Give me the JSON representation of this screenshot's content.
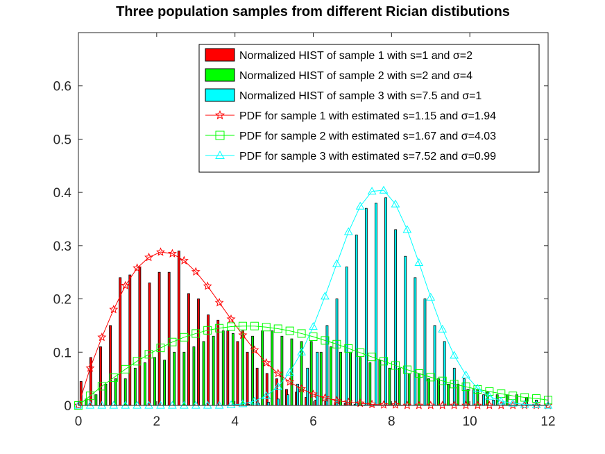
{
  "chart_data": {
    "type": "bar",
    "title": "Three population samples from different Rician distibutions",
    "xlabel": "",
    "ylabel": "",
    "xlim": [
      0,
      12
    ],
    "ylim": [
      0,
      0.7
    ],
    "x_ticks": [
      "0",
      "2",
      "4",
      "6",
      "8",
      "10",
      "12"
    ],
    "y_ticks": [
      "0",
      "0.1",
      "0.2",
      "0.3",
      "0.4",
      "0.5",
      "0.6"
    ],
    "grid": false,
    "legend_position": "top-right",
    "histograms": [
      {
        "name": "Normalized HIST of sample 1 with s=1 and σ=2",
        "color": "#ff0000",
        "x": [
          0.12,
          0.37,
          0.62,
          0.87,
          1.12,
          1.37,
          1.62,
          1.87,
          2.12,
          2.37,
          2.62,
          2.87,
          3.12,
          3.37,
          3.62,
          3.87,
          4.12,
          4.37,
          4.62,
          4.87,
          5.12,
          5.37,
          5.62,
          5.87,
          6.12,
          6.37,
          6.62,
          6.87,
          7.12,
          7.37
        ],
        "values": [
          0.045,
          0.09,
          0.11,
          0.15,
          0.24,
          0.245,
          0.26,
          0.23,
          0.25,
          0.25,
          0.29,
          0.21,
          0.2,
          0.17,
          0.16,
          0.14,
          0.12,
          0.1,
          0.07,
          0.06,
          0.05,
          0.03,
          0.025,
          0.015,
          0.01,
          0.008,
          0.005,
          0.004,
          0.002,
          0.001
        ]
      },
      {
        "name": "Normalized HIST of sample 2 with s=2 and σ=4",
        "color": "#00ff00",
        "x": [
          0.2,
          0.45,
          0.7,
          0.95,
          1.2,
          1.45,
          1.7,
          1.95,
          2.2,
          2.45,
          2.7,
          2.95,
          3.2,
          3.45,
          3.7,
          3.95,
          4.2,
          4.45,
          4.7,
          4.95,
          5.2,
          5.45,
          5.7,
          5.95,
          6.2,
          6.45,
          6.7,
          6.95,
          7.2,
          7.45,
          7.7,
          7.95,
          8.2,
          8.45,
          8.7,
          8.95,
          9.2,
          9.45,
          9.7,
          9.95,
          10.2,
          10.45,
          10.7,
          10.95,
          11.2,
          11.45,
          11.7
        ],
        "values": [
          0.012,
          0.02,
          0.04,
          0.05,
          0.05,
          0.07,
          0.08,
          0.09,
          0.085,
          0.1,
          0.1,
          0.11,
          0.12,
          0.13,
          0.14,
          0.135,
          0.14,
          0.13,
          0.14,
          0.14,
          0.13,
          0.125,
          0.12,
          0.12,
          0.1,
          0.11,
          0.1,
          0.1,
          0.09,
          0.08,
          0.085,
          0.07,
          0.07,
          0.06,
          0.06,
          0.05,
          0.05,
          0.04,
          0.04,
          0.03,
          0.03,
          0.025,
          0.02,
          0.02,
          0.02,
          0.015,
          0.01
        ]
      },
      {
        "name": "Normalized HIST of sample 3 with s=7.5 and σ=1",
        "color": "#00ffff",
        "x": [
          4.3,
          4.55,
          4.8,
          5.05,
          5.3,
          5.55,
          5.8,
          6.05,
          6.3,
          6.55,
          6.8,
          7.05,
          7.3,
          7.55,
          7.8,
          8.05,
          8.3,
          8.55,
          8.8,
          9.05,
          9.3,
          9.55,
          9.8,
          10.05,
          10.3,
          10.55,
          10.8
        ],
        "values": [
          0.002,
          0.004,
          0.006,
          0.012,
          0.02,
          0.04,
          0.07,
          0.1,
          0.15,
          0.2,
          0.26,
          0.32,
          0.37,
          0.38,
          0.39,
          0.33,
          0.28,
          0.24,
          0.2,
          0.15,
          0.12,
          0.07,
          0.05,
          0.03,
          0.02,
          0.01,
          0.005
        ]
      }
    ],
    "series": [
      {
        "name": "PDF for sample 1 with estimated s=1.15 and σ=1.94",
        "color": "#ff0000",
        "marker": "star",
        "x": [
          0,
          0.3,
          0.6,
          0.9,
          1.2,
          1.5,
          1.8,
          2.1,
          2.4,
          2.7,
          3.0,
          3.3,
          3.6,
          3.9,
          4.2,
          4.5,
          4.8,
          5.1,
          5.4,
          5.7,
          6.0,
          6.3,
          6.6,
          6.9,
          7.2,
          7.5,
          7.8,
          8.1,
          8.4,
          8.7,
          9.0,
          9.3,
          9.6,
          9.9,
          10.2,
          10.5,
          10.8,
          11.1,
          11.4,
          11.7,
          12.0
        ],
        "values": [
          0,
          0.07,
          0.128,
          0.18,
          0.225,
          0.258,
          0.278,
          0.288,
          0.285,
          0.272,
          0.251,
          0.224,
          0.193,
          0.162,
          0.132,
          0.104,
          0.08,
          0.06,
          0.044,
          0.031,
          0.021,
          0.014,
          0.009,
          0.006,
          0.004,
          0.002,
          0.001,
          0.001,
          0,
          0,
          0,
          0,
          0,
          0,
          0,
          0,
          0,
          0,
          0,
          0,
          0
        ]
      },
      {
        "name": "PDF for sample 2 with estimated s=1.67 and σ=4.03",
        "color": "#00ff00",
        "marker": "square",
        "x": [
          0,
          0.3,
          0.6,
          0.9,
          1.2,
          1.5,
          1.8,
          2.1,
          2.4,
          2.7,
          3.0,
          3.3,
          3.6,
          3.9,
          4.2,
          4.5,
          4.8,
          5.1,
          5.4,
          5.7,
          6.0,
          6.3,
          6.6,
          6.9,
          7.2,
          7.5,
          7.8,
          8.1,
          8.4,
          8.7,
          9.0,
          9.3,
          9.6,
          9.9,
          10.2,
          10.5,
          10.8,
          11.1,
          11.4,
          11.7,
          12.0
        ],
        "values": [
          0,
          0.018,
          0.036,
          0.052,
          0.068,
          0.083,
          0.096,
          0.108,
          0.119,
          0.128,
          0.135,
          0.141,
          0.145,
          0.148,
          0.149,
          0.149,
          0.147,
          0.144,
          0.14,
          0.135,
          0.129,
          0.122,
          0.115,
          0.107,
          0.099,
          0.091,
          0.083,
          0.075,
          0.067,
          0.06,
          0.053,
          0.046,
          0.04,
          0.035,
          0.03,
          0.026,
          0.022,
          0.018,
          0.015,
          0.013,
          0.01
        ]
      },
      {
        "name": "PDF for sample 3 with estimated s=7.52 and σ=0.99",
        "color": "#00ffff",
        "marker": "triangle",
        "x": [
          0,
          0.3,
          0.6,
          0.9,
          1.2,
          1.5,
          1.8,
          2.1,
          2.4,
          2.7,
          3.0,
          3.3,
          3.6,
          3.9,
          4.2,
          4.5,
          4.8,
          5.1,
          5.4,
          5.7,
          6.0,
          6.3,
          6.6,
          6.9,
          7.2,
          7.5,
          7.8,
          8.1,
          8.4,
          8.7,
          9.0,
          9.3,
          9.6,
          9.9,
          10.2,
          10.5,
          10.8,
          11.1,
          11.4,
          11.7,
          12.0
        ],
        "values": [
          0,
          0,
          0,
          0,
          0,
          0,
          0,
          0,
          0,
          0,
          0,
          0,
          0,
          0.001,
          0.003,
          0.008,
          0.018,
          0.035,
          0.062,
          0.1,
          0.148,
          0.205,
          0.266,
          0.326,
          0.374,
          0.402,
          0.404,
          0.378,
          0.33,
          0.268,
          0.203,
          0.143,
          0.094,
          0.057,
          0.032,
          0.017,
          0.008,
          0.004,
          0.002,
          0.001,
          0
        ]
      }
    ]
  }
}
